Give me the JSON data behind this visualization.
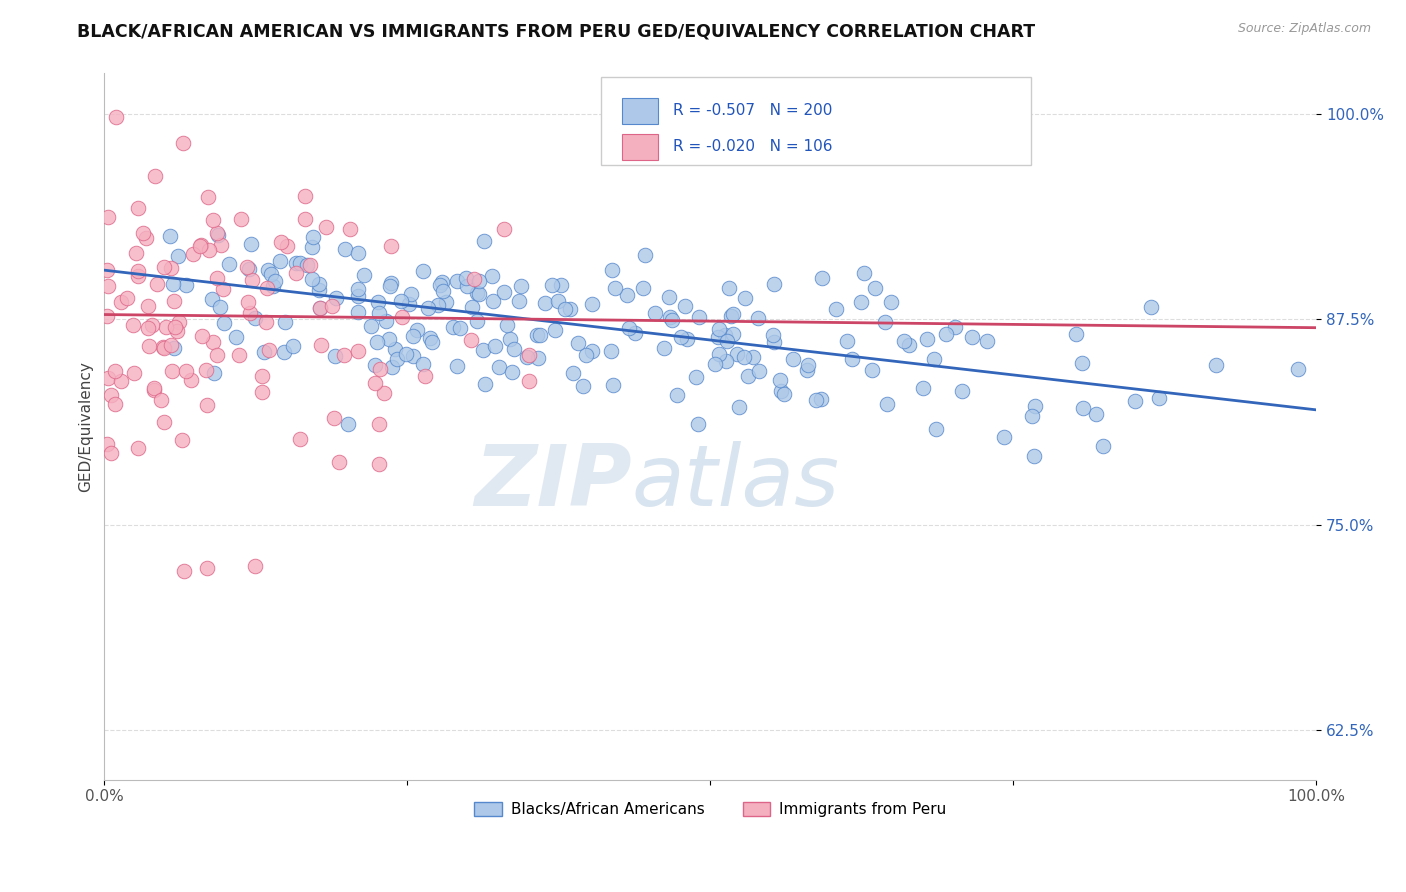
{
  "title": "BLACK/AFRICAN AMERICAN VS IMMIGRANTS FROM PERU GED/EQUIVALENCY CORRELATION CHART",
  "source": "Source: ZipAtlas.com",
  "ylabel": "GED/Equivalency",
  "legend_label_blue": "Blacks/African Americans",
  "legend_label_pink": "Immigrants from Peru",
  "r_blue": "-0.507",
  "n_blue": "200",
  "r_pink": "-0.020",
  "n_pink": "106",
  "color_blue_fill": "#adc8e8",
  "color_blue_edge": "#5588cc",
  "color_pink_fill": "#f5b0c0",
  "color_pink_edge": "#dd6688",
  "color_trendline_blue": "#3366bb",
  "color_trendline_pink": "#cc4466",
  "watermark_zip": "ZIP",
  "watermark_atlas": "atlas",
  "xlim": [
    0.0,
    1.0
  ],
  "ylim": [
    0.595,
    1.025
  ],
  "yticks": [
    0.625,
    0.75,
    0.875,
    1.0
  ],
  "ytick_labels": [
    "62.5%",
    "75.0%",
    "87.5%",
    "100.0%"
  ],
  "title_fontsize": 12.5,
  "axis_fontsize": 11,
  "tick_fontsize": 11,
  "background_color": "#ffffff",
  "seed_blue": 42,
  "seed_pink": 7,
  "blue_intercept": 0.905,
  "blue_slope": -0.085,
  "blue_noise_std": 0.022,
  "pink_intercept": 0.878,
  "pink_slope": -0.008,
  "pink_noise_std": 0.055
}
